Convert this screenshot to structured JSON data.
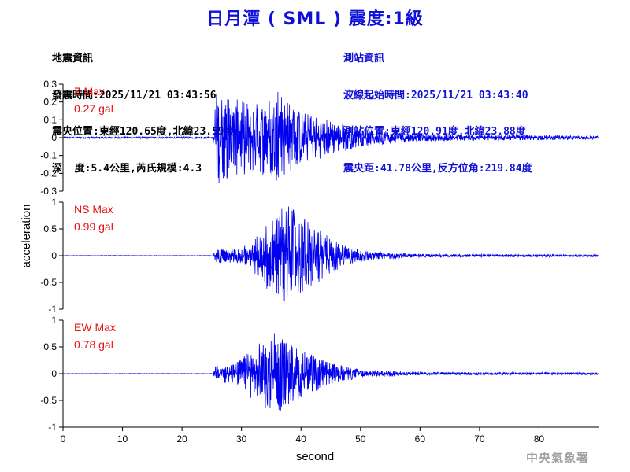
{
  "title": "日月潭 ( SML ) 震度:1級",
  "earthquake": {
    "heading": "地震資訊",
    "origin_time": "發震時間:2025/11/21 03:43:56",
    "epicenter": "震央位置:東經120.65度,北緯23.59度",
    "depth_magnitude": "深  度:5.4公里,芮氏規模:4.3"
  },
  "station": {
    "heading": "測站資訊",
    "wave_start": "波線起始時間:2025/11/21 03:43:40",
    "location": "測站位置:東經120.91度,北緯23.88度",
    "distance": "震央距:41.78公里,反方位角:219.84度"
  },
  "agency": "中央氣象署",
  "colors": {
    "title": "#1010d8",
    "trace": "#0000ee",
    "label": "#e81010",
    "axis": "#000000"
  },
  "chart_data": {
    "type": "line",
    "xlabel": "second",
    "ylabel": "acceleration",
    "xlim": [
      0,
      90
    ],
    "xticks": [
      0,
      10,
      20,
      30,
      40,
      50,
      60,
      70,
      80
    ],
    "panels": [
      {
        "name": "Z",
        "label_line1": "Z Max",
        "label_line2": "0.27 gal",
        "max_gal": 0.27,
        "ylim": [
          -0.3,
          0.3
        ],
        "yticks": [
          -0.3,
          -0.2,
          -0.1,
          0,
          0.1,
          0.2,
          0.3
        ],
        "ytick_labels": [
          "-0.3",
          "-0.2",
          "-0.1",
          "0",
          "0.1",
          "0.2",
          "0.3"
        ],
        "envelope": [
          [
            0,
            0.005
          ],
          [
            25.2,
            0.005
          ],
          [
            25.6,
            0.27
          ],
          [
            28,
            0.22
          ],
          [
            33,
            0.2
          ],
          [
            36,
            0.26
          ],
          [
            40,
            0.15
          ],
          [
            45,
            0.1
          ],
          [
            50,
            0.05
          ],
          [
            60,
            0.02
          ],
          [
            90,
            0.01
          ]
        ]
      },
      {
        "name": "NS",
        "label_line1": "NS Max",
        "label_line2": "0.99 gal",
        "max_gal": 0.99,
        "ylim": [
          -1,
          1
        ],
        "yticks": [
          -1,
          -0.5,
          0,
          0.5,
          1
        ],
        "ytick_labels": [
          "-1",
          "-0.5",
          "0",
          "0.5",
          "1"
        ],
        "envelope": [
          [
            0,
            0.005
          ],
          [
            25.2,
            0.005
          ],
          [
            25.6,
            0.12
          ],
          [
            30,
            0.15
          ],
          [
            33,
            0.45
          ],
          [
            37,
            0.99
          ],
          [
            41,
            0.7
          ],
          [
            43,
            0.5
          ],
          [
            47,
            0.2
          ],
          [
            52,
            0.07
          ],
          [
            60,
            0.03
          ],
          [
            90,
            0.02
          ]
        ]
      },
      {
        "name": "EW",
        "label_line1": "EW Max",
        "label_line2": "0.78 gal",
        "max_gal": 0.78,
        "ylim": [
          -1,
          1
        ],
        "yticks": [
          -1,
          -0.5,
          0,
          0.5,
          1
        ],
        "ytick_labels": [
          "-1",
          "-0.5",
          "0",
          "0.5",
          "1"
        ],
        "envelope": [
          [
            0,
            0.005
          ],
          [
            25.2,
            0.005
          ],
          [
            25.6,
            0.15
          ],
          [
            29,
            0.2
          ],
          [
            32,
            0.5
          ],
          [
            35.5,
            0.78
          ],
          [
            40,
            0.45
          ],
          [
            45,
            0.2
          ],
          [
            50,
            0.08
          ],
          [
            60,
            0.03
          ],
          [
            90,
            0.02
          ]
        ]
      }
    ]
  }
}
